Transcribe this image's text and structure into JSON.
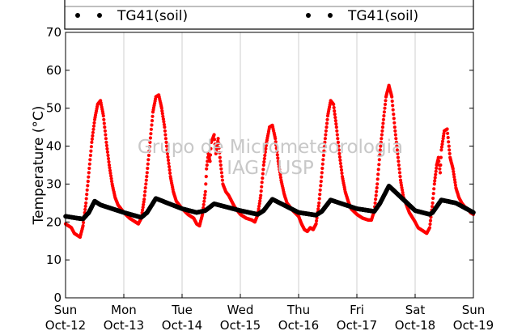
{
  "chart_data": {
    "type": "scatter",
    "ylabel": "Temperature (°C)",
    "ylim": [
      0,
      70
    ],
    "yticks": [
      "0",
      "10",
      "20",
      "30",
      "40",
      "50",
      "60",
      "70"
    ],
    "xlim": [
      0,
      7
    ],
    "grid": "vertical lines at day boundaries",
    "x_ticks": [
      {
        "day": "Sun",
        "date": "Oct-12"
      },
      {
        "day": "Mon",
        "date": "Oct-13"
      },
      {
        "day": "Tue",
        "date": "Oct-14"
      },
      {
        "day": "Wed",
        "date": "Oct-15"
      },
      {
        "day": "Thu",
        "date": "Oct-16"
      },
      {
        "day": "Fri",
        "date": "Oct-17"
      },
      {
        "day": "Sat",
        "date": "Oct-18"
      },
      {
        "day": "Sun",
        "date": "Oct-19"
      }
    ],
    "legend": {
      "placement": "top (two columns, partially cut off)",
      "entries": [
        {
          "label": "TG41(soil)",
          "marker": "black dots"
        },
        {
          "label": "TG41(soil)",
          "marker": "black dots"
        }
      ]
    },
    "watermark": [
      "Grupo de Micrometeorologia",
      "IAG / USP"
    ],
    "series": [
      {
        "color": "#ff0000",
        "points": [
          [
            0.0,
            19.5
          ],
          [
            0.1,
            18.5
          ],
          [
            0.15,
            17.0
          ],
          [
            0.25,
            16.0
          ],
          [
            0.3,
            19.0
          ],
          [
            0.35,
            25.0
          ],
          [
            0.4,
            33.0
          ],
          [
            0.45,
            41.0
          ],
          [
            0.5,
            47.0
          ],
          [
            0.55,
            51.0
          ],
          [
            0.6,
            52.0
          ],
          [
            0.65,
            48.0
          ],
          [
            0.7,
            41.0
          ],
          [
            0.75,
            35.0
          ],
          [
            0.8,
            30.0
          ],
          [
            0.85,
            26.5
          ],
          [
            0.9,
            24.5
          ],
          [
            1.0,
            22.5
          ],
          [
            1.1,
            21.0
          ],
          [
            1.2,
            20.0
          ],
          [
            1.25,
            19.5
          ],
          [
            1.3,
            21.0
          ],
          [
            1.35,
            26.0
          ],
          [
            1.4,
            33.0
          ],
          [
            1.45,
            41.0
          ],
          [
            1.5,
            49.0
          ],
          [
            1.55,
            53.0
          ],
          [
            1.6,
            53.5
          ],
          [
            1.65,
            50.0
          ],
          [
            1.7,
            45.0
          ],
          [
            1.75,
            38.0
          ],
          [
            1.8,
            32.0
          ],
          [
            1.85,
            28.0
          ],
          [
            1.9,
            25.5
          ],
          [
            2.0,
            23.5
          ],
          [
            2.1,
            22.0
          ],
          [
            2.2,
            21.0
          ],
          [
            2.25,
            19.5
          ],
          [
            2.3,
            19.0
          ],
          [
            2.35,
            22.0
          ],
          [
            2.4,
            28.0
          ],
          [
            2.42,
            34.0
          ],
          [
            2.45,
            38.0
          ],
          [
            2.48,
            36.0
          ],
          [
            2.5,
            41.0
          ],
          [
            2.55,
            43.0
          ],
          [
            2.58,
            38.0
          ],
          [
            2.62,
            42.0
          ],
          [
            2.65,
            37.0
          ],
          [
            2.7,
            30.0
          ],
          [
            2.75,
            28.0
          ],
          [
            2.8,
            27.0
          ],
          [
            2.9,
            24.0
          ],
          [
            3.0,
            22.0
          ],
          [
            3.1,
            21.0
          ],
          [
            3.2,
            20.5
          ],
          [
            3.25,
            20.0
          ],
          [
            3.3,
            22.0
          ],
          [
            3.35,
            27.0
          ],
          [
            3.4,
            35.0
          ],
          [
            3.45,
            41.0
          ],
          [
            3.5,
            45.0
          ],
          [
            3.55,
            45.5
          ],
          [
            3.6,
            42.0
          ],
          [
            3.65,
            36.0
          ],
          [
            3.7,
            31.0
          ],
          [
            3.75,
            27.5
          ],
          [
            3.8,
            25.0
          ],
          [
            3.9,
            23.0
          ],
          [
            4.0,
            21.5
          ],
          [
            4.05,
            19.5
          ],
          [
            4.1,
            18.0
          ],
          [
            4.15,
            17.5
          ],
          [
            4.2,
            18.5
          ],
          [
            4.25,
            18.0
          ],
          [
            4.3,
            19.5
          ],
          [
            4.35,
            25.0
          ],
          [
            4.4,
            33.0
          ],
          [
            4.45,
            41.0
          ],
          [
            4.5,
            48.0
          ],
          [
            4.55,
            52.0
          ],
          [
            4.6,
            51.0
          ],
          [
            4.65,
            45.0
          ],
          [
            4.7,
            38.0
          ],
          [
            4.75,
            32.0
          ],
          [
            4.8,
            28.0
          ],
          [
            4.85,
            25.5
          ],
          [
            4.9,
            23.5
          ],
          [
            5.0,
            22.0
          ],
          [
            5.1,
            21.0
          ],
          [
            5.2,
            20.5
          ],
          [
            5.25,
            20.5
          ],
          [
            5.3,
            23.0
          ],
          [
            5.35,
            30.0
          ],
          [
            5.4,
            39.0
          ],
          [
            5.45,
            46.0
          ],
          [
            5.5,
            53.0
          ],
          [
            5.55,
            56.0
          ],
          [
            5.6,
            53.0
          ],
          [
            5.65,
            45.0
          ],
          [
            5.7,
            38.0
          ],
          [
            5.75,
            31.0
          ],
          [
            5.8,
            26.5
          ],
          [
            5.85,
            24.5
          ],
          [
            5.9,
            22.5
          ],
          [
            6.0,
            20.0
          ],
          [
            6.05,
            18.5
          ],
          [
            6.1,
            18.0
          ],
          [
            6.15,
            17.5
          ],
          [
            6.2,
            17.0
          ],
          [
            6.25,
            18.5
          ],
          [
            6.3,
            25.0
          ],
          [
            6.33,
            30.0
          ],
          [
            6.37,
            35.0
          ],
          [
            6.4,
            37.0
          ],
          [
            6.43,
            33.0
          ],
          [
            6.45,
            39.0
          ],
          [
            6.48,
            42.0
          ],
          [
            6.5,
            44.0
          ],
          [
            6.55,
            44.5
          ],
          [
            6.58,
            40.0
          ],
          [
            6.6,
            37.0
          ],
          [
            6.65,
            34.0
          ],
          [
            6.7,
            29.0
          ],
          [
            6.75,
            26.5
          ],
          [
            6.8,
            25.0
          ],
          [
            6.85,
            24.0
          ],
          [
            6.9,
            23.5
          ],
          [
            6.95,
            22.5
          ],
          [
            7.0,
            22.0
          ]
        ]
      },
      {
        "color": "#000000",
        "points": [
          [
            0.0,
            21.5
          ],
          [
            0.2,
            21.0
          ],
          [
            0.3,
            20.8
          ],
          [
            0.4,
            22.5
          ],
          [
            0.5,
            25.5
          ],
          [
            0.6,
            24.5
          ],
          [
            1.0,
            22.5
          ],
          [
            1.3,
            21.2
          ],
          [
            1.4,
            22.5
          ],
          [
            1.55,
            26.2
          ],
          [
            2.0,
            23.5
          ],
          [
            2.25,
            22.5
          ],
          [
            2.4,
            23.0
          ],
          [
            2.55,
            24.8
          ],
          [
            3.0,
            23.0
          ],
          [
            3.3,
            22.0
          ],
          [
            3.4,
            23.0
          ],
          [
            3.55,
            26.0
          ],
          [
            4.0,
            22.5
          ],
          [
            4.3,
            21.8
          ],
          [
            4.4,
            22.8
          ],
          [
            4.55,
            25.8
          ],
          [
            5.0,
            23.5
          ],
          [
            5.3,
            22.8
          ],
          [
            5.4,
            25.0
          ],
          [
            5.55,
            29.5
          ],
          [
            6.0,
            23.0
          ],
          [
            6.25,
            22.0
          ],
          [
            6.3,
            22.5
          ],
          [
            6.45,
            25.8
          ],
          [
            6.7,
            25.0
          ],
          [
            7.0,
            22.5
          ]
        ]
      }
    ]
  }
}
